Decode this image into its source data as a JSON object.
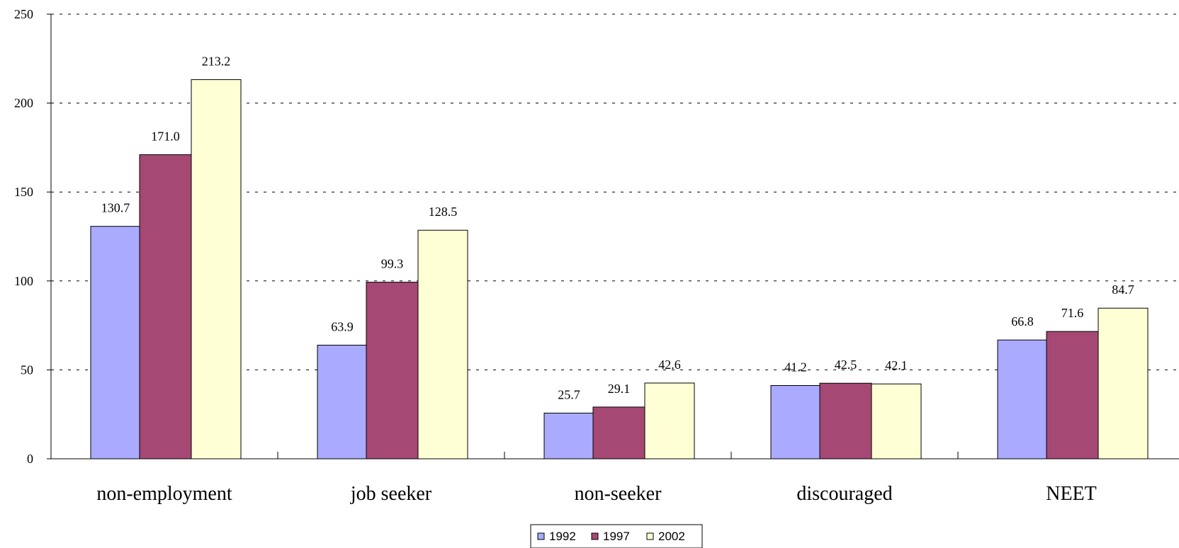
{
  "chart_data": {
    "type": "bar",
    "title": "",
    "xlabel": "",
    "ylabel": "",
    "ylim": [
      0,
      250
    ],
    "yticks": [
      0,
      50,
      100,
      150,
      200,
      250
    ],
    "grid": true,
    "legend_position": "bottom",
    "categories": [
      "non-employment",
      "job seeker",
      "non-seeker",
      "discouraged",
      "NEET"
    ],
    "series": [
      {
        "name": "1992",
        "color": "#aaaaff",
        "values": [
          130.7,
          63.9,
          25.7,
          41.2,
          66.8
        ]
      },
      {
        "name": "1997",
        "color": "#a64874",
        "values": [
          171.0,
          99.3,
          29.1,
          42.5,
          71.6
        ]
      },
      {
        "name": "2002",
        "color": "#ffffd6",
        "values": [
          213.2,
          128.5,
          42.6,
          42.1,
          84.7
        ]
      }
    ]
  }
}
